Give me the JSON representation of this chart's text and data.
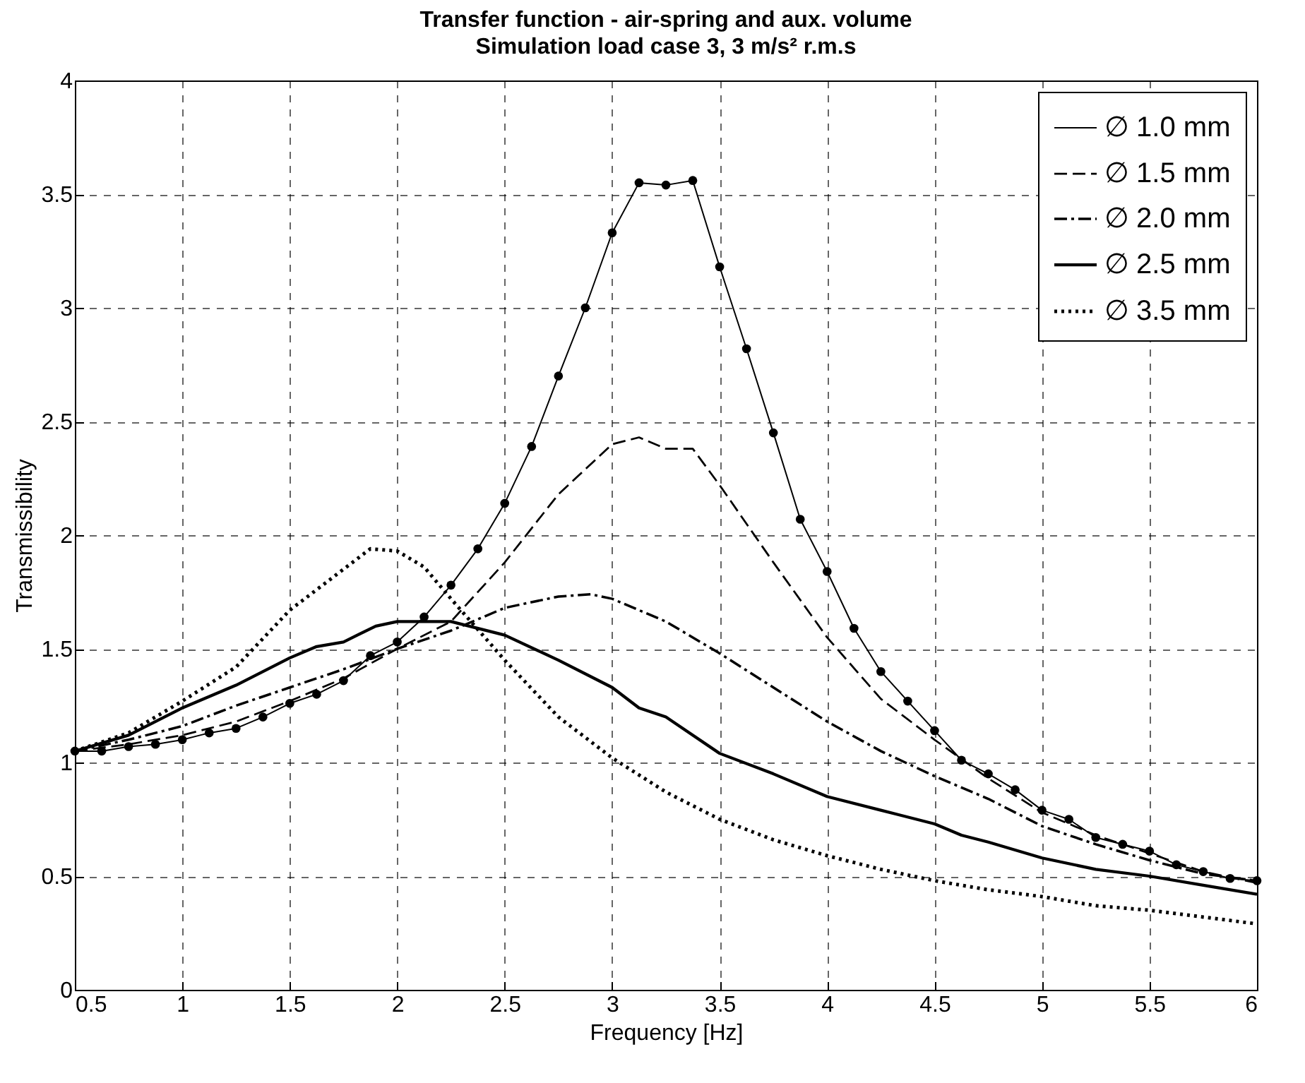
{
  "chart_data": {
    "type": "line",
    "title": "Transfer function - air-spring and aux. volume",
    "subtitle": "Simulation load case 3, 3 m/s² r.m.s",
    "xlabel": "Frequency [Hz]",
    "ylabel": "Transmissibility",
    "xlim": [
      0.5,
      6
    ],
    "xticks": [
      0.5,
      1,
      1.5,
      2,
      2.5,
      3,
      3.5,
      4,
      4.5,
      5,
      5.5,
      6
    ],
    "ylim": [
      0,
      4
    ],
    "yticks": [
      0,
      0.5,
      1,
      1.5,
      2,
      2.5,
      3,
      3.5,
      4
    ],
    "grid": true,
    "legend": "top right",
    "series": [
      {
        "name": "∅ 1.0 mm",
        "color": "#000000",
        "marker": "circle",
        "line_style": "solid",
        "x": [
          0.5,
          0.625,
          0.75,
          0.875,
          1.0,
          1.125,
          1.25,
          1.375,
          1.5,
          1.625,
          1.75,
          1.875,
          2.0,
          2.125,
          2.25,
          2.375,
          2.5,
          2.625,
          2.75,
          2.875,
          3.0,
          3.125,
          3.25,
          3.375,
          3.5,
          3.625,
          3.75,
          3.875,
          4.0,
          4.125,
          4.25,
          4.375,
          4.5,
          4.625,
          4.75,
          4.875,
          5.0,
          5.125,
          5.25,
          5.375,
          5.5,
          5.625,
          5.75,
          5.875,
          6.0
        ],
        "values": [
          1.05,
          1.05,
          1.07,
          1.08,
          1.1,
          1.13,
          1.15,
          1.2,
          1.26,
          1.3,
          1.36,
          1.47,
          1.53,
          1.64,
          1.78,
          1.94,
          2.14,
          2.39,
          2.7,
          3.0,
          3.33,
          3.55,
          3.54,
          3.56,
          3.18,
          2.82,
          2.45,
          2.07,
          1.84,
          1.59,
          1.4,
          1.27,
          1.14,
          1.01,
          0.95,
          0.88,
          0.79,
          0.75,
          0.67,
          0.64,
          0.61,
          0.55,
          0.52,
          0.49,
          0.48
        ]
      },
      {
        "name": "∅ 1.5 mm",
        "color": "#000000",
        "marker": "none",
        "line_style": "dashed",
        "x": [
          0.5,
          0.75,
          1.0,
          1.25,
          1.5,
          1.75,
          2.0,
          2.25,
          2.5,
          2.75,
          3.0,
          3.125,
          3.25,
          3.375,
          3.5,
          3.75,
          4.0,
          4.25,
          4.5,
          4.75,
          5.0,
          5.25,
          5.5,
          5.75,
          6.0
        ],
        "values": [
          1.05,
          1.08,
          1.12,
          1.18,
          1.27,
          1.37,
          1.5,
          1.62,
          1.88,
          2.18,
          2.4,
          2.43,
          2.38,
          2.38,
          2.22,
          1.88,
          1.55,
          1.28,
          1.1,
          0.93,
          0.78,
          0.68,
          0.6,
          0.52,
          0.47
        ]
      },
      {
        "name": "∅ 2.0 mm",
        "color": "#000000",
        "marker": "none",
        "line_style": "dashdot",
        "x": [
          0.5,
          0.75,
          1.0,
          1.25,
          1.5,
          1.75,
          2.0,
          2.25,
          2.5,
          2.75,
          2.9,
          3.0,
          3.25,
          3.5,
          3.75,
          4.0,
          4.25,
          4.5,
          4.75,
          5.0,
          5.25,
          5.5,
          5.75,
          6.0
        ],
        "values": [
          1.05,
          1.1,
          1.16,
          1.25,
          1.33,
          1.41,
          1.5,
          1.58,
          1.68,
          1.73,
          1.74,
          1.72,
          1.62,
          1.48,
          1.33,
          1.18,
          1.05,
          0.94,
          0.84,
          0.72,
          0.64,
          0.57,
          0.51,
          0.48
        ]
      },
      {
        "name": "∅ 2.5 mm",
        "color": "#000000",
        "marker": "none",
        "line_style": "solid",
        "x": [
          0.5,
          0.75,
          1.0,
          1.25,
          1.5,
          1.625,
          1.75,
          1.9,
          2.0,
          2.25,
          2.5,
          2.75,
          3.0,
          3.125,
          3.25,
          3.5,
          3.75,
          4.0,
          4.25,
          4.5,
          4.625,
          4.75,
          5.0,
          5.25,
          5.5,
          5.75,
          6.0
        ],
        "values": [
          1.05,
          1.12,
          1.24,
          1.34,
          1.46,
          1.51,
          1.53,
          1.6,
          1.62,
          1.62,
          1.56,
          1.45,
          1.33,
          1.24,
          1.2,
          1.04,
          0.95,
          0.85,
          0.79,
          0.73,
          0.68,
          0.65,
          0.58,
          0.53,
          0.5,
          0.46,
          0.42
        ]
      },
      {
        "name": "∅ 3.5 mm",
        "color": "#000000",
        "marker": "none",
        "line_style": "dotted",
        "x": [
          0.5,
          0.75,
          1.0,
          1.25,
          1.5,
          1.75,
          1.875,
          2.0,
          2.125,
          2.25,
          2.5,
          2.75,
          3.0,
          3.25,
          3.5,
          3.75,
          4.0,
          4.25,
          4.5,
          4.75,
          5.0,
          5.25,
          5.5,
          5.75,
          6.0
        ],
        "values": [
          1.05,
          1.13,
          1.27,
          1.42,
          1.67,
          1.85,
          1.94,
          1.93,
          1.86,
          1.72,
          1.45,
          1.2,
          1.02,
          0.87,
          0.75,
          0.66,
          0.59,
          0.53,
          0.48,
          0.44,
          0.41,
          0.37,
          0.35,
          0.32,
          0.29
        ]
      }
    ]
  }
}
